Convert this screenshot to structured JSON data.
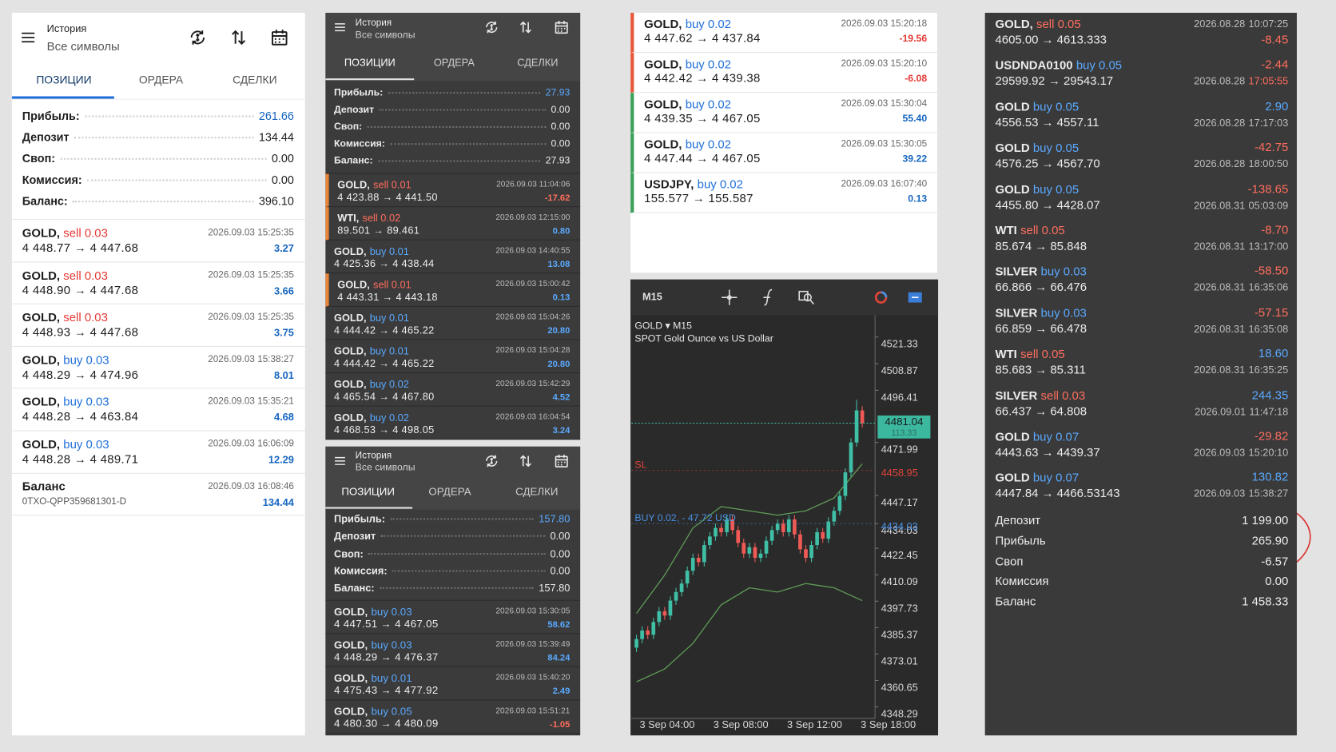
{
  "panels": [
    {
      "header": {
        "title": "История",
        "subtitle": "Все символы"
      },
      "tabs": [
        "ПОЗИЦИИ",
        "ОРДЕРА",
        "СДЕЛКИ"
      ],
      "summary": [
        {
          "label": "Прибыль:",
          "value": "261.66"
        },
        {
          "label": "Депозит",
          "value": "134.44"
        },
        {
          "label": "Своп:",
          "value": "0.00"
        },
        {
          "label": "Комиссия:",
          "value": "0.00"
        },
        {
          "label": "Баланс:",
          "value": "396.10"
        }
      ],
      "trades": [
        {
          "symbol": "GOLD,",
          "side": "sell 0.03",
          "prices": "4 448.77 → 4 447.68",
          "time": "2026.09.03 15:25:35",
          "profit": "3.27"
        },
        {
          "symbol": "GOLD,",
          "side": "sell 0.03",
          "prices": "4 448.90 → 4 447.68",
          "time": "2026.09.03 15:25:35",
          "profit": "3.66"
        },
        {
          "symbol": "GOLD,",
          "side": "sell 0.03",
          "prices": "4 448.93 → 4 447.68",
          "time": "2026.09.03 15:25:35",
          "profit": "3.75"
        },
        {
          "symbol": "GOLD,",
          "side": "buy 0.03",
          "prices": "4 448.29 → 4 474.96",
          "time": "2026.09.03 15:38:27",
          "profit": "8.01"
        },
        {
          "symbol": "GOLD,",
          "side": "buy 0.03",
          "prices": "4 448.28 → 4 463.84",
          "time": "2026.09.03 15:35:21",
          "profit": "4.68"
        },
        {
          "symbol": "GOLD,",
          "side": "buy 0.03",
          "prices": "4 448.28 → 4 489.71",
          "time": "2026.09.03 16:06:09",
          "profit": "12.29"
        }
      ],
      "balance": {
        "label": "Баланс",
        "id": "0TXO-QPP359681301-D",
        "time": "2026.09.03 16:08:46",
        "amount": "134.44"
      }
    },
    {
      "header": {
        "title": "История",
        "subtitle": "Все символы"
      },
      "tabs": [
        "ПОЗИЦИИ",
        "ОРДЕРА",
        "СДЕЛКИ"
      ],
      "summary": [
        {
          "label": "Прибыль:",
          "value": "27.93"
        },
        {
          "label": "Депозит",
          "value": "0.00"
        },
        {
          "label": "Своп:",
          "value": "0.00"
        },
        {
          "label": "Комиссия:",
          "value": "0.00"
        },
        {
          "label": "Баланс:",
          "value": "27.93"
        }
      ],
      "trades": [
        {
          "symbol": "GOLD,",
          "side": "sell 0.01",
          "prices": "4 423.88 → 4 441.50",
          "time": "2026.09.03 11:04:06",
          "profit": "-17.62"
        },
        {
          "symbol": "WTI,",
          "side": "sell 0.02",
          "prices": "89.501 → 89.461",
          "time": "2026.09.03 12:15:00",
          "profit": "0.80"
        },
        {
          "symbol": "GOLD,",
          "side": "buy 0.01",
          "prices": "4 425.36 → 4 438.44",
          "time": "2026.09.03 14:40:55",
          "profit": "13.08"
        },
        {
          "symbol": "GOLD,",
          "side": "sell 0.01",
          "prices": "4 443.31 → 4 443.18",
          "time": "2026.09.03 15:00:42",
          "profit": "0.13"
        },
        {
          "symbol": "GOLD,",
          "side": "buy 0.01",
          "prices": "4 444.42 → 4 465.22",
          "time": "2026.09.03 15:04:26",
          "profit": "20.80"
        },
        {
          "symbol": "GOLD,",
          "side": "buy 0.01",
          "prices": "4 444.42 → 4 465.22",
          "time": "2026.09.03 15:04:28",
          "profit": "20.80"
        },
        {
          "symbol": "GOLD,",
          "side": "buy 0.02",
          "prices": "4 465.54 → 4 467.80",
          "time": "2026.09.03 15:42:29",
          "profit": "4.52"
        },
        {
          "symbol": "GOLD,",
          "side": "buy 0.02",
          "prices": "4 468.53 → 4 498.05",
          "time": "2026.09.03 16:04:54",
          "profit": "3.24"
        }
      ]
    },
    {
      "header": {
        "title": "История",
        "subtitle": "Все символы"
      },
      "tabs": [
        "ПОЗИЦИИ",
        "ОРДЕРА",
        "СДЕЛКИ"
      ],
      "summary": [
        {
          "label": "Прибыль:",
          "value": "157.80"
        },
        {
          "label": "Депозит",
          "value": "0.00"
        },
        {
          "label": "Своп:",
          "value": "0.00"
        },
        {
          "label": "Комиссия:",
          "value": "0.00"
        },
        {
          "label": "Баланс:",
          "value": "157.80"
        }
      ],
      "trades": [
        {
          "symbol": "GOLD,",
          "side": "buy 0.03",
          "prices": "4 447.51 → 4 467.05",
          "time": "2026.09.03 15:30:05",
          "profit": "58.62"
        },
        {
          "symbol": "GOLD,",
          "side": "buy 0.03",
          "prices": "4 448.29 → 4 476.37",
          "time": "2026.09.03 15:39:49",
          "profit": "84.24"
        },
        {
          "symbol": "GOLD,",
          "side": "buy 0.01",
          "prices": "4 475.43 → 4 477.92",
          "time": "2026.09.03 15:40:20",
          "profit": "2.49"
        },
        {
          "symbol": "GOLD,",
          "side": "buy 0.05",
          "prices": "4 480.30 → 4 480.09",
          "time": "2026.09.03 15:51:21",
          "profit": "-1.05"
        }
      ]
    }
  ],
  "recent_trades": [
    {
      "symbol": "GOLD,",
      "side": "buy 0.02",
      "prices": "4 447.62 → 4 437.84",
      "time": "2026.09.03 15:20:18",
      "profit": "-19.56"
    },
    {
      "symbol": "GOLD,",
      "side": "buy 0.02",
      "prices": "4 442.42 → 4 439.38",
      "time": "2026.09.03 15:20:10",
      "profit": "-6.08"
    },
    {
      "symbol": "GOLD,",
      "side": "buy 0.02",
      "prices": "4 439.35 → 4 467.05",
      "time": "2026.09.03 15:30:04",
      "profit": "55.40"
    },
    {
      "symbol": "GOLD,",
      "side": "buy 0.02",
      "prices": "4 447.44 → 4 467.05",
      "time": "2026.09.03 15:30:05",
      "profit": "39.22"
    },
    {
      "symbol": "USDJPY,",
      "side": "buy 0.02",
      "prices": "155.577 → 155.587",
      "time": "2026.09.03 16:07:40",
      "profit": "0.13"
    }
  ],
  "chart": {
    "timeframe": "M15",
    "symbol": "GOLD ▾ M15",
    "description": "SPOT Gold Ounce vs US Dollar",
    "ylim": [
      4342.9,
      4531.5
    ],
    "yticks": [
      4521.33,
      4508.87,
      4496.41,
      4471.99,
      4447.17,
      4434.03,
      4422.45,
      4410.09,
      4397.73,
      4385.37,
      4373.01,
      4360.65,
      4348.29
    ],
    "xlabels": [
      "3 Sep 04:00",
      "3 Sep 08:00",
      "3 Sep 12:00",
      "3 Sep 18:00"
    ],
    "levels": [
      {
        "label": "SL",
        "value": 4458.95,
        "color": "#e0443a"
      },
      {
        "label": "BUY 0.02, - 47.72 USD",
        "value": 4434.03,
        "color": "#4a90e2"
      }
    ],
    "current": {
      "value": 4481.04,
      "sub": "113.33"
    },
    "candles": [
      [
        4376,
        4382,
        4374,
        4380
      ],
      [
        4380,
        4386,
        4378,
        4384
      ],
      [
        4384,
        4386,
        4380,
        4382
      ],
      [
        4382,
        4390,
        4380,
        4388
      ],
      [
        4388,
        4395,
        4386,
        4393
      ],
      [
        4393,
        4395,
        4389,
        4391
      ],
      [
        4391,
        4400,
        4389,
        4398
      ],
      [
        4398,
        4404,
        4396,
        4402
      ],
      [
        4402,
        4408,
        4400,
        4406
      ],
      [
        4406,
        4414,
        4404,
        4412
      ],
      [
        4412,
        4420,
        4410,
        4418
      ],
      [
        4418,
        4420,
        4414,
        4416
      ],
      [
        4416,
        4426,
        4414,
        4424
      ],
      [
        4424,
        4430,
        4422,
        4428
      ],
      [
        4428,
        4434,
        4426,
        4432
      ],
      [
        4432,
        4434,
        4428,
        4430
      ],
      [
        4430,
        4438,
        4428,
        4436
      ],
      [
        4436,
        4438,
        4429,
        4431
      ],
      [
        4431,
        4433,
        4423,
        4425
      ],
      [
        4425,
        4427,
        4418,
        4420
      ],
      [
        4420,
        4425,
        4418,
        4423
      ],
      [
        4423,
        4425,
        4416,
        4418
      ],
      [
        4418,
        4422,
        4416,
        4420
      ],
      [
        4420,
        4428,
        4418,
        4426
      ],
      [
        4426,
        4433,
        4424,
        4431
      ],
      [
        4431,
        4436,
        4429,
        4434
      ],
      [
        4434,
        4436,
        4428,
        4430
      ],
      [
        4430,
        4438,
        4428,
        4436
      ],
      [
        4436,
        4438,
        4427,
        4429
      ],
      [
        4429,
        4431,
        4420,
        4422
      ],
      [
        4422,
        4424,
        4416,
        4418
      ],
      [
        4418,
        4426,
        4416,
        4424
      ],
      [
        4424,
        4432,
        4422,
        4430
      ],
      [
        4430,
        4432,
        4425,
        4427
      ],
      [
        4427,
        4437,
        4425,
        4435
      ],
      [
        4435,
        4442,
        4433,
        4440
      ],
      [
        4440,
        4449,
        4438,
        4447
      ],
      [
        4447,
        4460,
        4445,
        4458
      ],
      [
        4458,
        4474,
        4456,
        4472
      ],
      [
        4472,
        4492,
        4470,
        4487
      ],
      [
        4487,
        4489,
        4479,
        4481
      ]
    ],
    "bands": {
      "upper": [
        4392,
        4410,
        4432,
        4442,
        4440,
        4438,
        4440,
        4446,
        4462
      ],
      "lower": [
        4360,
        4366,
        4378,
        4396,
        4404,
        4402,
        4406,
        4404,
        4398
      ]
    }
  },
  "history": {
    "trades": [
      {
        "symbol": "GOLD,",
        "side": "sell 0.05",
        "prices": "4605.00 → 4613.333",
        "date": "2026.08.28",
        "clock": "10:07:25",
        "profit": "-8.45"
      },
      {
        "symbol": "USDNDA0100",
        "side": "buy 0.05",
        "prices": "29599.92 → 29543.17",
        "date": "2026.08.28",
        "clock": "17:05:55",
        "profit": "-2.44"
      },
      {
        "symbol": "GOLD",
        "side": "buy 0.05",
        "prices": "4556.53 → 4557.11",
        "date": "2026.08.28",
        "clock": "17:17:03",
        "profit": "2.90"
      },
      {
        "symbol": "GOLD",
        "side": "buy 0.05",
        "prices": "4576.25 → 4567.70",
        "date": "2026.08.28",
        "clock": "18:00:50",
        "profit": "-42.75"
      },
      {
        "symbol": "GOLD",
        "side": "buy 0.05",
        "prices": "4455.80 → 4428.07",
        "date": "2026.08.31",
        "clock": "05:03:09",
        "profit": "-138.65"
      },
      {
        "symbol": "WTI",
        "side": "sell 0.05",
        "prices": "85.674 → 85.848",
        "date": "2026.08.31",
        "clock": "13:17:00",
        "profit": "-8.70"
      },
      {
        "symbol": "SILVER",
        "side": "buy 0.03",
        "prices": "66.866 → 66.476",
        "date": "2026.08.31",
        "clock": "16:35:06",
        "profit": "-58.50"
      },
      {
        "symbol": "SILVER",
        "side": "buy 0.03",
        "prices": "66.859 → 66.478",
        "date": "2026.08.31",
        "clock": "16:35:08",
        "profit": "-57.15"
      },
      {
        "symbol": "WTI",
        "side": "sell 0.05",
        "prices": "85.683 → 85.311",
        "date": "2026.08.31",
        "clock": "16:35:25",
        "profit": "18.60"
      },
      {
        "symbol": "SILVER",
        "side": "sell 0.03",
        "prices": "66.437 → 64.808",
        "date": "2026.09.01",
        "clock": "11:47:18",
        "profit": "244.35"
      },
      {
        "symbol": "GOLD",
        "side": "buy 0.07",
        "prices": "4443.63 → 4439.37",
        "date": "2026.09.03",
        "clock": "15:20:10",
        "profit": "-29.82"
      },
      {
        "symbol": "GOLD",
        "side": "buy 0.07",
        "prices": "4447.84 → 4466.53143",
        "date": "2026.09.03",
        "clock": "15:38:27",
        "profit": "130.82"
      }
    ],
    "summary": [
      {
        "label": "Депозит",
        "value": "1 199.00"
      },
      {
        "label": "Прибыль",
        "value": "265.90"
      },
      {
        "label": "Своп",
        "value": "-6.57"
      },
      {
        "label": "Комиссия",
        "value": "0.00"
      },
      {
        "label": "Баланс",
        "value": "1 458.33"
      }
    ]
  }
}
